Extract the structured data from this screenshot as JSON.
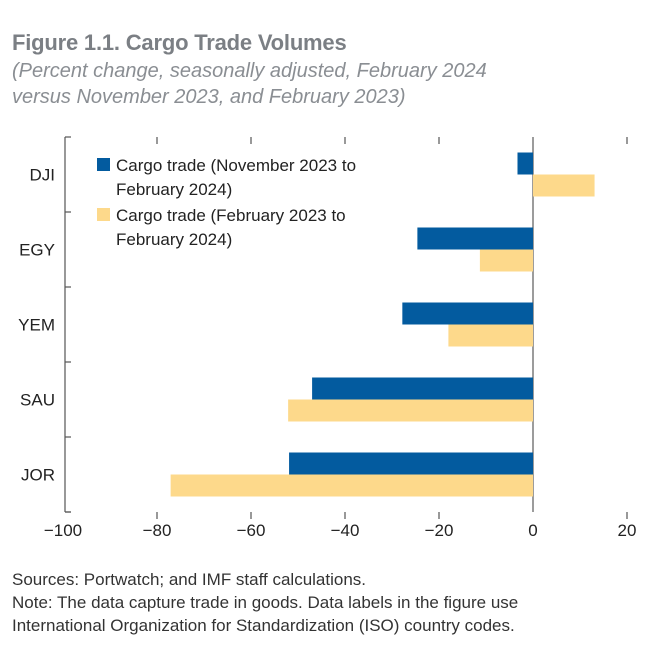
{
  "header": {
    "title": "Figure 1.1. Cargo Trade Volumes",
    "subtitle_line1": "(Percent change, seasonally adjusted, February 2024",
    "subtitle_line2": "versus November 2023, and February 2023)"
  },
  "notes": {
    "sources": "Sources: Portwatch; and IMF staff calculations.",
    "note_line1": "Note: The data capture trade in goods. Data labels in the figure use",
    "note_line2": "International Organization for Standardization (ISO) country codes."
  },
  "chart_data": {
    "type": "bar",
    "orientation": "horizontal",
    "title": "Figure 1.1. Cargo Trade Volumes",
    "subtitle": "(Percent change, seasonally adjusted, February 2024 versus November 2023, and February 2023)",
    "categories": [
      "DJI",
      "EGY",
      "YEM",
      "SAU",
      "JOR"
    ],
    "series": [
      {
        "name": "Cargo trade (November 2023 to February 2024)",
        "legend_lines": [
          "Cargo trade (November 2023 to",
          "February 2024)"
        ],
        "color": "#035b9f",
        "values": [
          -3.3,
          -24.6,
          -27.8,
          -47.0,
          -51.9
        ]
      },
      {
        "name": "Cargo trade (February 2023 to February 2024)",
        "legend_lines": [
          "Cargo trade (February 2023 to",
          "February 2024)"
        ],
        "color": "#fdd98b",
        "values": [
          13.1,
          -11.3,
          -18.0,
          -52.1,
          -77.1
        ]
      }
    ],
    "xlabel": "",
    "ylabel": "",
    "xlim": [
      -100,
      20
    ],
    "xticks": [
      -100,
      -80,
      -60,
      -40,
      -20,
      0,
      20
    ],
    "xtick_labels": [
      "−100",
      "−80",
      "−60",
      "−40",
      "−20",
      "0",
      "20"
    ],
    "grid": false,
    "legend_position": "top-left"
  }
}
